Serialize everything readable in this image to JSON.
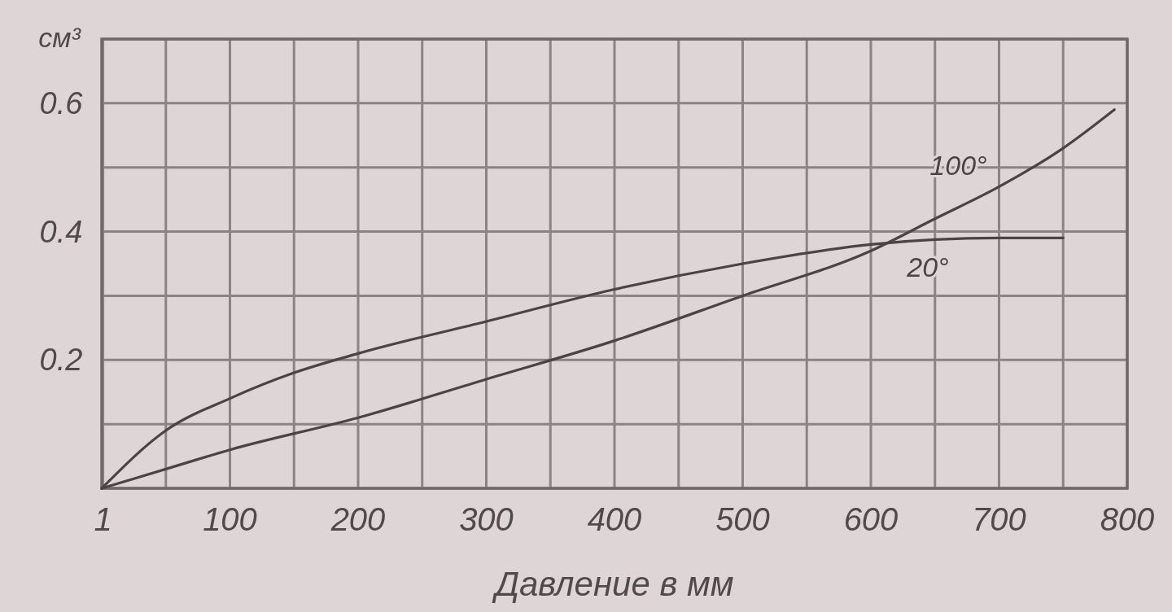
{
  "chart_data": {
    "type": "line",
    "xlabel": "Давление в мм",
    "ylabel": "см³",
    "xlim": [
      0,
      800
    ],
    "ylim": [
      0,
      0.7
    ],
    "xticks": [
      {
        "value": 1,
        "label": "1"
      },
      {
        "value": 50,
        "label": null
      },
      100,
      {
        "value": 150,
        "label": null
      },
      200,
      {
        "value": 250,
        "label": null
      },
      300,
      {
        "value": 350,
        "label": null
      },
      400,
      {
        "value": 450,
        "label": null
      },
      500,
      {
        "value": 550,
        "label": null
      },
      600,
      {
        "value": 650,
        "label": null
      },
      700,
      {
        "value": 750,
        "label": null
      },
      800
    ],
    "yticks": [
      {
        "value": 0,
        "label": null
      },
      {
        "value": 0.1,
        "label": null
      },
      0.2,
      {
        "value": 0.3,
        "label": null
      },
      0.4,
      {
        "value": 0.5,
        "label": null
      },
      0.6,
      {
        "value": 0.7,
        "label": null
      }
    ],
    "grid": true,
    "line_style": "solid",
    "marker": "none",
    "series": [
      {
        "name": "100°",
        "color": "#4a4446",
        "x": [
          0,
          50,
          100,
          200,
          300,
          400,
          500,
          600,
          650,
          700,
          750,
          790
        ],
        "values": [
          0,
          0.03,
          0.06,
          0.11,
          0.17,
          0.23,
          0.3,
          0.37,
          0.42,
          0.47,
          0.53,
          0.59
        ]
      },
      {
        "name": "20°",
        "color": "#4a4446",
        "x": [
          0,
          50,
          100,
          150,
          200,
          300,
          400,
          500,
          600,
          700,
          750
        ],
        "values": [
          0,
          0.09,
          0.14,
          0.18,
          0.21,
          0.26,
          0.31,
          0.35,
          0.38,
          0.39,
          0.39
        ]
      }
    ]
  }
}
